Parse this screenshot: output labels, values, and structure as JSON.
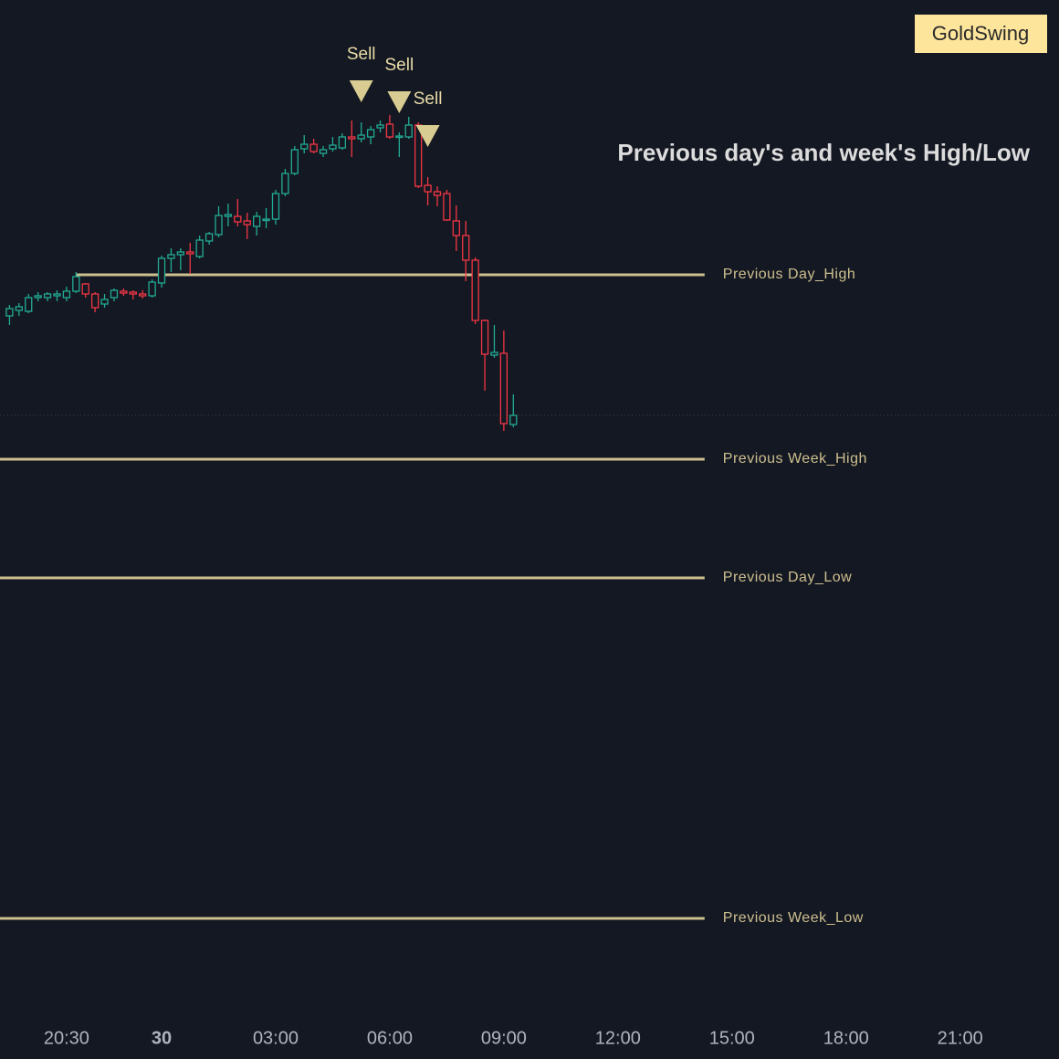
{
  "chart_data": {
    "type": "candlestick",
    "title": "Previous day's and week's High/Low",
    "badge": "GoldSwing",
    "up_color": "#22ab94",
    "down_color": "#f23645",
    "level_color": "#cdbf8f",
    "xlim": [
      -4.25,
      23.6
    ],
    "ylim": [
      0,
      1110
    ],
    "xticks": [
      {
        "value": -2.5,
        "label": "20:30"
      },
      {
        "value": 0,
        "label": "30"
      },
      {
        "value": 3,
        "label": "03:00"
      },
      {
        "value": 6,
        "label": "06:00"
      },
      {
        "value": 9,
        "label": "09:00"
      },
      {
        "value": 12,
        "label": "12:00"
      },
      {
        "value": 15,
        "label": "15:00"
      },
      {
        "value": 18,
        "label": "18:00"
      },
      {
        "value": 21,
        "label": "21:00"
      }
    ],
    "x": [
      -4,
      -3.75,
      -3.5,
      -3.25,
      -3,
      -2.75,
      -2.5,
      -2.25,
      -2,
      -1.75,
      -1.5,
      -1.25,
      -1,
      -0.75,
      -0.5,
      -0.25,
      0,
      0.25,
      0.5,
      0.75,
      1,
      1.25,
      1.5,
      1.75,
      2,
      2.25,
      2.5,
      2.75,
      3,
      3.25,
      3.5,
      3.75,
      4,
      4.25,
      4.5,
      4.75,
      5,
      5.25,
      5.5,
      5.75,
      6,
      6.25,
      6.5,
      6.75,
      7,
      7.25,
      7.5,
      7.75,
      8,
      8.25,
      8.5,
      8.75,
      9,
      9.25
    ],
    "open": [
      764,
      770,
      769,
      784,
      784,
      786,
      784,
      791,
      799,
      788,
      777,
      784,
      791,
      790,
      788,
      786,
      800,
      827,
      831,
      834,
      829,
      846,
      853,
      873,
      873,
      868,
      862,
      869,
      870,
      898,
      920,
      947,
      952,
      942,
      947,
      948,
      960,
      958,
      960,
      970,
      974,
      960,
      960,
      973,
      907,
      900,
      898,
      868,
      852,
      825,
      759,
      721,
      723,
      645
    ],
    "high": [
      776,
      778,
      788,
      790,
      790,
      792,
      796,
      812,
      800,
      790,
      788,
      794,
      794,
      792,
      792,
      804,
      830,
      838,
      838,
      844,
      852,
      856,
      884,
      887,
      892,
      877,
      878,
      882,
      902,
      925,
      950,
      962,
      958,
      950,
      960,
      964,
      978,
      976,
      972,
      978,
      984,
      965,
      982,
      976,
      916,
      906,
      902,
      885,
      868,
      828,
      760,
      754,
      748,
      678
    ],
    "low": [
      754,
      764,
      767,
      780,
      780,
      780,
      780,
      789,
      784,
      768,
      773,
      780,
      786,
      782,
      783,
      784,
      795,
      812,
      814,
      810,
      827,
      842,
      850,
      862,
      862,
      848,
      852,
      860,
      864,
      895,
      918,
      942,
      942,
      938,
      944,
      946,
      938,
      954,
      952,
      965,
      958,
      938,
      958,
      904,
      885,
      884,
      868,
      835,
      802,
      755,
      682,
      718,
      638,
      642
    ],
    "close": [
      772,
      774,
      784,
      786,
      788,
      788,
      791,
      807,
      788,
      773,
      782,
      792,
      789,
      788,
      786,
      801,
      827,
      831,
      834,
      832,
      847,
      854,
      874,
      875,
      867,
      864,
      873,
      870,
      898,
      920,
      946,
      952,
      944,
      946,
      951,
      960,
      958,
      962,
      968,
      973,
      960,
      961,
      973,
      906,
      900,
      896,
      869,
      852,
      825,
      759,
      722,
      724,
      646,
      655
    ],
    "levels": [
      {
        "name": "Previous Day_High",
        "value": 809,
        "x": [
          -2.25,
          14.28
        ]
      },
      {
        "name": "Previous Week_High",
        "value": 607,
        "x": [
          -4.25,
          14.28
        ]
      },
      {
        "name": "Previous Day_Low",
        "value": 477,
        "x": [
          -4.25,
          14.28
        ]
      },
      {
        "name": "Previous Week_Low",
        "value": 104,
        "x": [
          -4.25,
          14.28
        ]
      }
    ],
    "signals": [
      {
        "label": "Sell",
        "x": 5.25,
        "y": 1010
      },
      {
        "label": "Sell",
        "x": 6.25,
        "y": 998
      },
      {
        "label": "Sell",
        "x": 7.0,
        "y": 961
      }
    ]
  }
}
